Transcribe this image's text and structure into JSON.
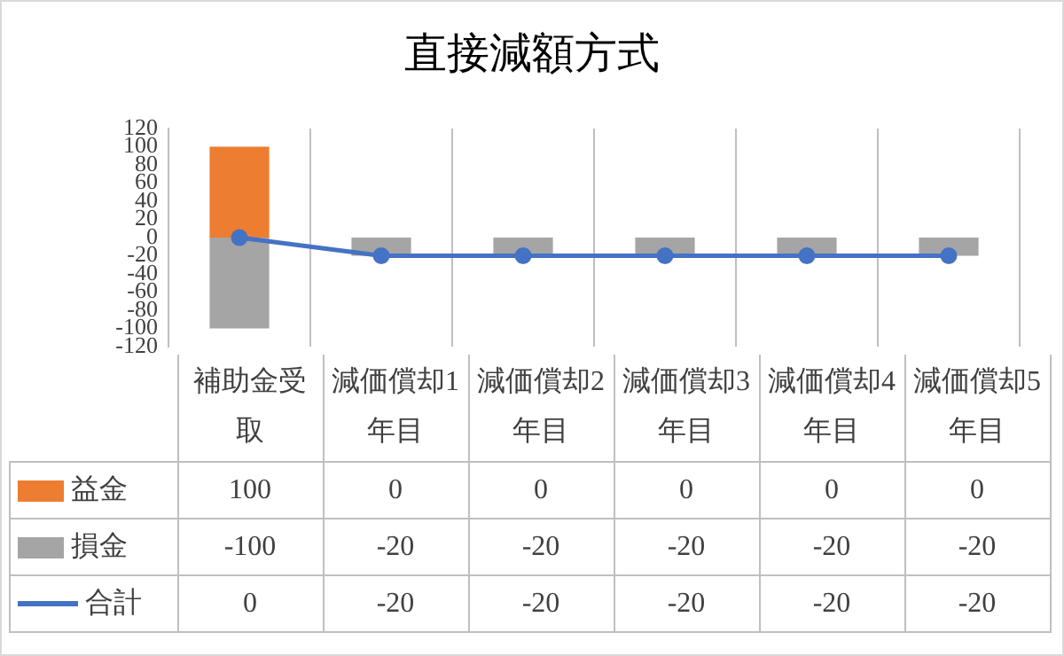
{
  "chart_data": {
    "type": "bar",
    "title": "直接減額方式",
    "stacked": true,
    "categories": [
      "補助金受取",
      "減価償却1年目",
      "減価償却2年目",
      "減価償却3年目",
      "減価償却4年目",
      "減価償却5年目"
    ],
    "series": [
      {
        "name": "益金",
        "color": "#ed7d31",
        "values": [
          100,
          0,
          0,
          0,
          0,
          0
        ]
      },
      {
        "name": "損金",
        "color": "#a5a5a5",
        "values": [
          -100,
          -20,
          -20,
          -20,
          -20,
          -20
        ]
      },
      {
        "name": "合計",
        "type": "line",
        "color": "#4472c4",
        "values": [
          0,
          -20,
          -20,
          -20,
          -20,
          -20
        ]
      }
    ],
    "ylim": [
      -120,
      120
    ],
    "yticks": [
      -120,
      -100,
      -80,
      -60,
      -40,
      -20,
      0,
      20,
      40,
      60,
      80,
      100,
      120
    ],
    "grid": "x",
    "legend": "bottom left",
    "marker": "circle",
    "line_style": "solid",
    "data_labels": true
  }
}
